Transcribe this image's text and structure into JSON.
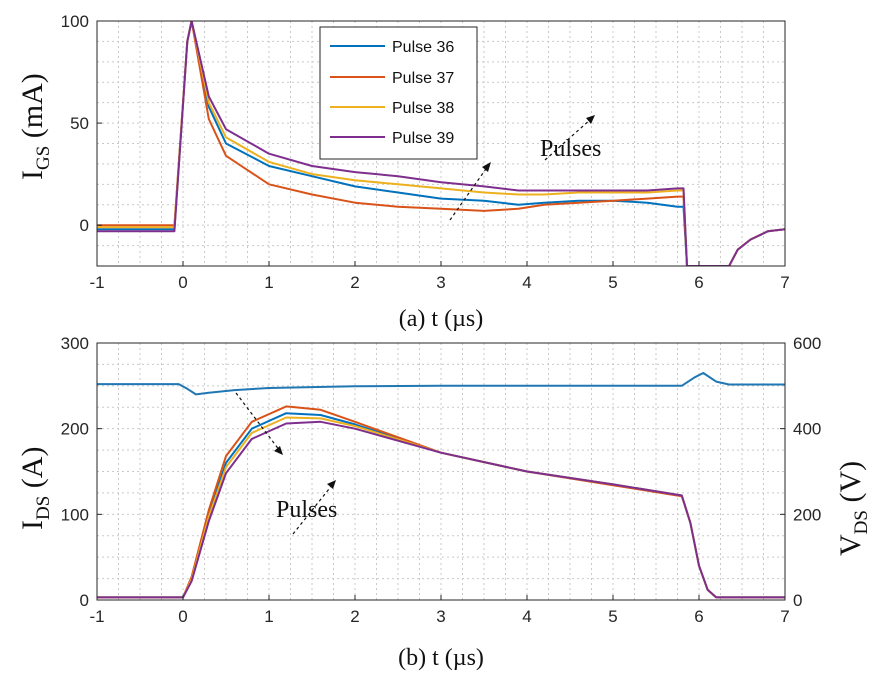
{
  "colors": {
    "pulse36": "#0072BD",
    "pulse37": "#D95319",
    "pulse38": "#EDB120",
    "pulse39": "#7E2F8E",
    "vds": "#1f77b4"
  },
  "chart_data": [
    {
      "type": "line",
      "panel": "a",
      "x_caption": "(a) t (µs)",
      "ylabel_main": "I",
      "ylabel_sub": "GS",
      "ylabel_unit": " (mA)",
      "xlim": [
        -1,
        7
      ],
      "ylim": [
        -20,
        100
      ],
      "xticks": [
        "-1",
        "0",
        "1",
        "2",
        "3",
        "4",
        "5",
        "6",
        "7"
      ],
      "yticks": [
        "0",
        "50",
        "100"
      ],
      "grid": true,
      "legend_position": "top-center",
      "annotation": "Pulses",
      "series": [
        {
          "name": "Pulse 36",
          "x": [
            -1,
            -0.1,
            0.05,
            0.1,
            0.3,
            0.5,
            1,
            1.5,
            2,
            2.5,
            3,
            3.5,
            3.9,
            4.2,
            4.6,
            5,
            5.4,
            5.75,
            5.82,
            5.86,
            6.35,
            6.45,
            6.6,
            6.8,
            7
          ],
          "y": [
            -2,
            -2,
            90,
            100,
            58,
            40,
            29,
            24,
            19,
            16,
            13,
            12,
            10,
            11,
            12,
            12,
            11,
            9,
            9,
            -20,
            -20,
            -12,
            -7,
            -3,
            -2
          ]
        },
        {
          "name": "Pulse 37",
          "x": [
            -1,
            -0.1,
            0.05,
            0.1,
            0.3,
            0.5,
            1,
            1.5,
            2,
            2.5,
            3,
            3.5,
            3.9,
            4.2,
            4.6,
            5,
            5.4,
            5.75,
            5.82,
            5.86,
            6.35,
            6.45,
            6.6,
            6.8,
            7
          ],
          "y": [
            0,
            0,
            90,
            100,
            52,
            34,
            20,
            15,
            11,
            9,
            8,
            7,
            8,
            10,
            11,
            12,
            13,
            14,
            14,
            -20,
            -20,
            -12,
            -7,
            -3,
            -2
          ]
        },
        {
          "name": "Pulse 38",
          "x": [
            -1,
            -0.1,
            0.05,
            0.1,
            0.3,
            0.5,
            1,
            1.5,
            2,
            2.5,
            3,
            3.5,
            3.9,
            4.2,
            4.6,
            5,
            5.4,
            5.75,
            5.82,
            5.86,
            6.35,
            6.45,
            6.6,
            6.8,
            7
          ],
          "y": [
            -1,
            -1,
            90,
            100,
            60,
            43,
            31,
            25,
            22,
            20,
            18,
            16,
            15,
            15,
            16,
            16,
            16,
            17,
            17,
            -20,
            -20,
            -12,
            -7,
            -3,
            -2
          ]
        },
        {
          "name": "Pulse 39",
          "x": [
            -1,
            -0.1,
            0.05,
            0.1,
            0.3,
            0.5,
            1,
            1.5,
            2,
            2.5,
            3,
            3.5,
            3.9,
            4.2,
            4.6,
            5,
            5.4,
            5.75,
            5.82,
            5.86,
            6.35,
            6.45,
            6.6,
            6.8,
            7
          ],
          "y": [
            -3,
            -3,
            90,
            100,
            63,
            47,
            35,
            29,
            26,
            24,
            21,
            19,
            17,
            17,
            17,
            17,
            17,
            18,
            18,
            -20,
            -20,
            -12,
            -7,
            -3,
            -2
          ]
        }
      ]
    },
    {
      "type": "line",
      "panel": "b",
      "x_caption": "(b) t (µs)",
      "ylabel_main": "I",
      "ylabel_sub": "DS",
      "ylabel_unit": " (A)",
      "y2label_main": "V",
      "y2label_sub": "DS",
      "y2label_unit": " (V)",
      "xlim": [
        -1,
        7
      ],
      "ylim": [
        0,
        300
      ],
      "y2lim": [
        0,
        600
      ],
      "xticks": [
        "-1",
        "0",
        "1",
        "2",
        "3",
        "4",
        "5",
        "6",
        "7"
      ],
      "yticks": [
        "0",
        "100",
        "200",
        "300"
      ],
      "y2ticks": [
        "0",
        "200",
        "400",
        "600"
      ],
      "grid": true,
      "annotation": "Pulses",
      "series": [
        {
          "name": "Pulse 36",
          "axis": "left",
          "x": [
            -1,
            0,
            0.1,
            0.3,
            0.5,
            0.8,
            1.2,
            1.6,
            2,
            3,
            4,
            5,
            5.8,
            5.9,
            6.0,
            6.1,
            6.2,
            7
          ],
          "y": [
            3,
            3,
            25,
            100,
            160,
            200,
            218,
            216,
            205,
            172,
            150,
            135,
            122,
            90,
            40,
            12,
            3,
            3
          ]
        },
        {
          "name": "Pulse 37",
          "axis": "left",
          "x": [
            -1,
            0,
            0.1,
            0.3,
            0.5,
            0.8,
            1.2,
            1.6,
            2,
            3,
            4,
            5,
            5.8,
            5.9,
            6.0,
            6.1,
            6.2,
            7
          ],
          "y": [
            3,
            3,
            27,
            105,
            168,
            208,
            226,
            222,
            208,
            172,
            150,
            134,
            121,
            90,
            40,
            12,
            3,
            3
          ]
        },
        {
          "name": "Pulse 38",
          "axis": "left",
          "x": [
            -1,
            0,
            0.1,
            0.3,
            0.5,
            0.8,
            1.2,
            1.6,
            2,
            3,
            4,
            5,
            5.8,
            5.9,
            6.0,
            6.1,
            6.2,
            7
          ],
          "y": [
            3,
            3,
            24,
            97,
            155,
            195,
            213,
            212,
            203,
            172,
            150,
            135,
            122,
            90,
            40,
            12,
            3,
            3
          ]
        },
        {
          "name": "Pulse 39",
          "axis": "left",
          "x": [
            -1,
            0,
            0.1,
            0.3,
            0.5,
            0.8,
            1.2,
            1.6,
            2,
            3,
            4,
            5,
            5.8,
            5.9,
            6.0,
            6.1,
            6.2,
            7
          ],
          "y": [
            3,
            3,
            22,
            92,
            148,
            188,
            206,
            208,
            200,
            172,
            150,
            135,
            122,
            90,
            40,
            12,
            3,
            3
          ]
        },
        {
          "axis": "right",
          "x": [
            -1,
            -0.05,
            0.05,
            0.15,
            0.3,
            0.6,
            1,
            2,
            3,
            4,
            5,
            5.8,
            5.95,
            6.05,
            6.2,
            6.35,
            7
          ],
          "y": [
            504,
            504,
            493,
            480,
            484,
            490,
            495,
            499,
            500,
            500,
            500,
            500,
            520,
            530,
            510,
            503,
            503
          ]
        }
      ]
    }
  ]
}
